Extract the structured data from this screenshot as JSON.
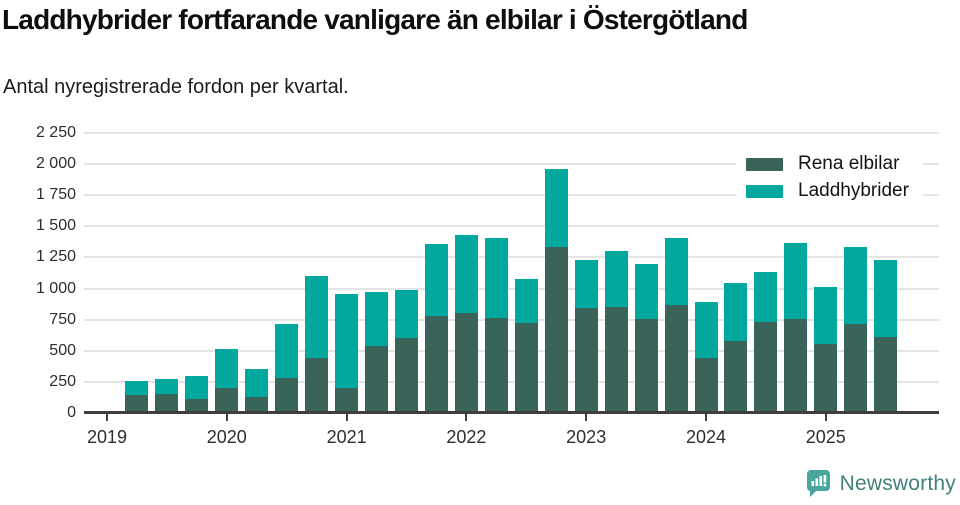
{
  "header": {
    "title": "Laddhybrider fortfarande vanligare än elbilar i Östergötland",
    "subtitle": "Antal nyregistrerade fordon per kvartal."
  },
  "chart_data": {
    "type": "bar",
    "stacked": true,
    "title": "Laddhybrider fortfarande vanligare än elbilar i Östergötland",
    "xlabel": "",
    "ylabel": "Antal nyregistrerade fordon per kvartal",
    "ylim": [
      0,
      2250
    ],
    "grid": true,
    "legend_position": "top-right",
    "categories": [
      "2019 Q2",
      "2019 Q3",
      "2019 Q4",
      "2020 Q1",
      "2020 Q2",
      "2020 Q3",
      "2020 Q4",
      "2021 Q1",
      "2021 Q2",
      "2021 Q3",
      "2021 Q4",
      "2022 Q1",
      "2022 Q2",
      "2022 Q3",
      "2022 Q4",
      "2023 Q1",
      "2023 Q2",
      "2023 Q3",
      "2023 Q4",
      "2024 Q1",
      "2024 Q2",
      "2024 Q3",
      "2024 Q4",
      "2025 Q1",
      "2025 Q2",
      "2025 Q3"
    ],
    "series": [
      {
        "name": "Rena elbilar",
        "color": "#3a6359",
        "values": [
          145,
          150,
          110,
          200,
          125,
          280,
          440,
          200,
          540,
          600,
          780,
          805,
          760,
          725,
          1330,
          840,
          850,
          755,
          865,
          445,
          580,
          730,
          755,
          555,
          715,
          610
        ]
      },
      {
        "name": "Laddhybrider",
        "color": "#00a89d",
        "values": [
          115,
          125,
          185,
          315,
          230,
          435,
          660,
          760,
          435,
          390,
          575,
          625,
          645,
          350,
          630,
          390,
          455,
          445,
          545,
          445,
          465,
          400,
          610,
          455,
          615,
          620
        ]
      }
    ],
    "y_ticks": [
      "0",
      "250",
      "500",
      "750",
      "1 000",
      "1 250",
      "1 500",
      "1 750",
      "2 000",
      "2 250"
    ],
    "x_year_labels": [
      "2019",
      "2020",
      "2021",
      "2022",
      "2023",
      "2024",
      "2025"
    ]
  },
  "colors": {
    "grid": "#e4e4e4",
    "axis": "#3f3f3f",
    "tick_text": "#2e2e2e",
    "logo_mark": "#48a69d",
    "logo_text": "#44807b"
  },
  "footer": {
    "brand": "Newsworthy"
  }
}
